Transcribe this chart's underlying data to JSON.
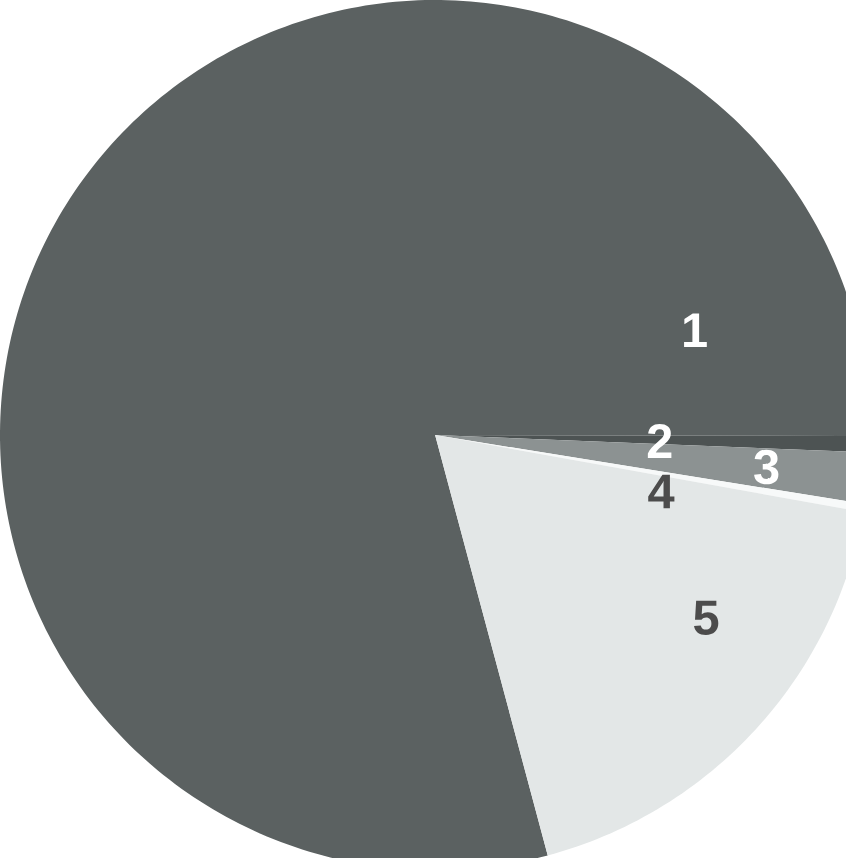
{
  "chart_data": {
    "type": "pie",
    "categories": [
      "1",
      "2",
      "3",
      "4",
      "5"
    ],
    "values": [
      79.2,
      0.6,
      1.9,
      0.3,
      18.0
    ],
    "colors": [
      "#5b6161",
      "#4d5353",
      "#8c9292",
      "#f7f9f9",
      "#e3e7e7"
    ]
  }
}
